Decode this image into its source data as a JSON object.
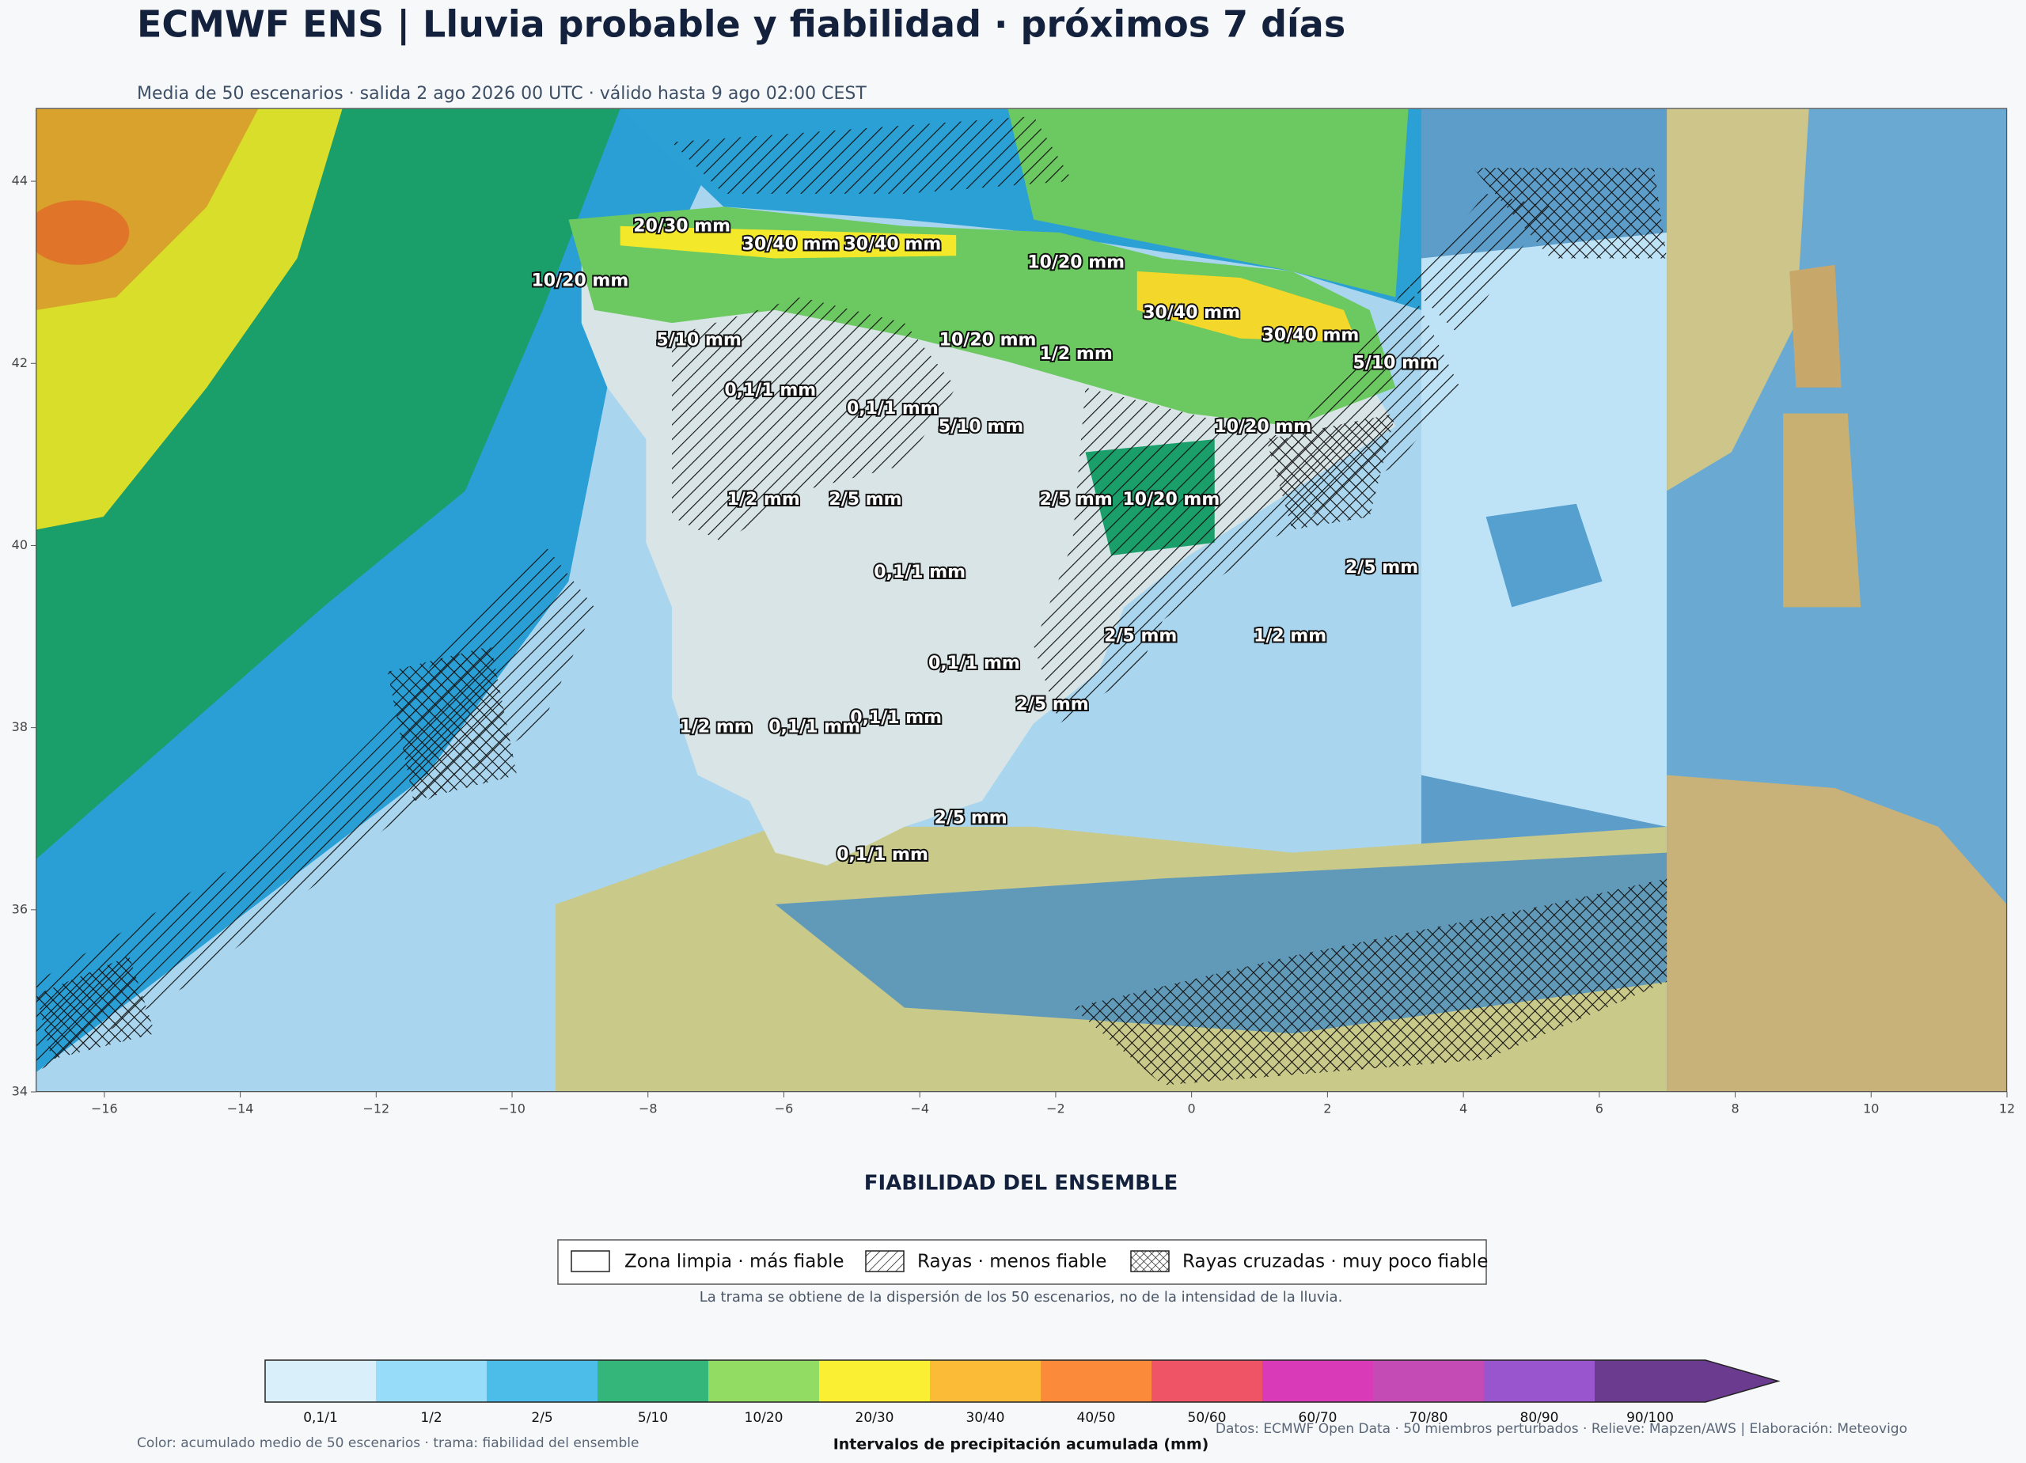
{
  "header": {
    "title": "ECMWF ENS | Lluvia probable y fiabilidad · próximos 7 días",
    "subtitle": "Media de 50 escenarios · salida 2 ago 2026 00 UTC · válido hasta 9 ago 02:00 CEST"
  },
  "map": {
    "xlim": [
      -17,
      12
    ],
    "ylim": [
      34,
      44.8
    ],
    "xticks": [
      {
        "value": -16,
        "label": "−16"
      },
      {
        "value": -14,
        "label": "−14"
      },
      {
        "value": -12,
        "label": "−12"
      },
      {
        "value": -10,
        "label": "−10"
      },
      {
        "value": -8,
        "label": "−8"
      },
      {
        "value": -6,
        "label": "−6"
      },
      {
        "value": -4,
        "label": "−4"
      },
      {
        "value": -2,
        "label": "−2"
      },
      0,
      2,
      4,
      6,
      8,
      10,
      12
    ],
    "yticks": [
      34,
      36,
      38,
      40,
      42,
      44
    ],
    "labels": [
      {
        "text": "20/30 mm",
        "lon": -7.5,
        "lat": 43.5
      },
      {
        "text": "30/40 mm",
        "lon": -5.9,
        "lat": 43.3
      },
      {
        "text": "30/40 mm",
        "lon": -4.4,
        "lat": 43.3
      },
      {
        "text": "10/20 mm",
        "lon": -1.7,
        "lat": 43.1
      },
      {
        "text": "10/20 mm",
        "lon": -9.0,
        "lat": 42.9
      },
      {
        "text": "30/40 mm",
        "lon": 0.0,
        "lat": 42.55
      },
      {
        "text": "30/40 mm",
        "lon": 1.75,
        "lat": 42.3
      },
      {
        "text": "5/10 mm",
        "lon": -7.25,
        "lat": 42.25
      },
      {
        "text": "10/20 mm",
        "lon": -3.0,
        "lat": 42.25
      },
      {
        "text": "1/2 mm",
        "lon": -1.7,
        "lat": 42.1
      },
      {
        "text": "5/10 mm",
        "lon": 3.0,
        "lat": 42.0
      },
      {
        "text": "0,1/1 mm",
        "lon": -6.2,
        "lat": 41.7
      },
      {
        "text": "0,1/1 mm",
        "lon": -4.4,
        "lat": 41.5
      },
      {
        "text": "5/10 mm",
        "lon": -3.1,
        "lat": 41.3
      },
      {
        "text": "10/20 mm",
        "lon": 1.05,
        "lat": 41.3
      },
      {
        "text": "1/2 mm",
        "lon": -6.3,
        "lat": 40.5
      },
      {
        "text": "2/5 mm",
        "lon": -4.8,
        "lat": 40.5
      },
      {
        "text": "2/5 mm",
        "lon": -1.7,
        "lat": 40.5
      },
      {
        "text": "10/20 mm",
        "lon": -0.3,
        "lat": 40.5
      },
      {
        "text": "2/5 mm",
        "lon": 2.8,
        "lat": 39.75
      },
      {
        "text": "0,1/1 mm",
        "lon": -4.0,
        "lat": 39.7
      },
      {
        "text": "2/5 mm",
        "lon": -0.75,
        "lat": 39.0
      },
      {
        "text": "1/2 mm",
        "lon": 1.45,
        "lat": 39.0
      },
      {
        "text": "0,1/1 mm",
        "lon": -3.2,
        "lat": 38.7
      },
      {
        "text": "2/5 mm",
        "lon": -2.05,
        "lat": 38.25
      },
      {
        "text": "0,1/1 mm",
        "lon": -4.35,
        "lat": 38.1
      },
      {
        "text": "1/2 mm",
        "lon": -7.0,
        "lat": 38.0
      },
      {
        "text": "0,1/1 mm",
        "lon": -5.55,
        "lat": 38.0
      },
      {
        "text": "2/5 mm",
        "lon": -3.25,
        "lat": 37.0
      },
      {
        "text": "0,1/1 mm",
        "lon": -4.55,
        "lat": 36.6
      }
    ]
  },
  "legend": {
    "title": "FIABILIDAD DEL ENSEMBLE",
    "items": [
      "Zona limpia · más fiable",
      "Rayas · menos fiable",
      "Rayas cruzadas · muy poco fiable"
    ],
    "note": "La trama se obtiene de la dispersión de los 50 escenarios, no de la intensidad de la lluvia."
  },
  "colorbar": {
    "categories": [
      "0,1/1",
      "1/2",
      "2/5",
      "5/10",
      "10/20",
      "20/30",
      "30/40",
      "40/50",
      "50/60",
      "60/70",
      "70/80",
      "80/90",
      "90/100"
    ],
    "colors": [
      "#d9f0fb",
      "#97dcf8",
      "#4bbde8",
      "#34b57a",
      "#92dc64",
      "#fbef33",
      "#fbbb37",
      "#fb8a3a",
      "#ef5366",
      "#d93bb8",
      "#c44bb5",
      "#9855cd",
      "#6a3b8e"
    ],
    "label": "Intervalos de precipitación acumulada (mm)"
  },
  "footer": {
    "left": "Color: acumulado medio de 50 escenarios · trama: fiabilidad del ensemble",
    "right": "Datos: ECMWF Open Data · 50 miembros perturbados · Relieve: Mapzen/AWS  |  Elaboración: Meteovigo"
  }
}
